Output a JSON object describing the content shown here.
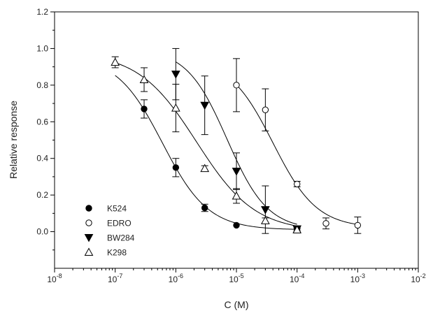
{
  "chart_data": {
    "type": "scatter",
    "title": "",
    "xlabel": "C (M)",
    "ylabel": "Relative response",
    "xscale": "log",
    "xlim": [
      1e-08,
      0.01
    ],
    "ylim": [
      -0.2,
      1.2
    ],
    "x_ticks": [
      {
        "value": 1e-08,
        "base": "10",
        "exp": "-8"
      },
      {
        "value": 1e-07,
        "base": "10",
        "exp": "-7"
      },
      {
        "value": 1e-06,
        "base": "10",
        "exp": "-6"
      },
      {
        "value": 1e-05,
        "base": "10",
        "exp": "-5"
      },
      {
        "value": 0.0001,
        "base": "10",
        "exp": "-4"
      },
      {
        "value": 0.001,
        "base": "10",
        "exp": "-3"
      },
      {
        "value": 0.01,
        "base": "10",
        "exp": "-2"
      }
    ],
    "y_ticks": [
      {
        "value": 0.0,
        "label": "0.0"
      },
      {
        "value": 0.2,
        "label": "0.2"
      },
      {
        "value": 0.4,
        "label": "0.4"
      },
      {
        "value": 0.6,
        "label": "0.6"
      },
      {
        "value": 0.8,
        "label": "0.8"
      },
      {
        "value": 1.0,
        "label": "1.0"
      },
      {
        "value": 1.2,
        "label": "1.2"
      }
    ],
    "grid": false,
    "legend_position": "bottom-left",
    "series": [
      {
        "name": "K524",
        "marker": "filled-circle",
        "x": [
          3e-07,
          1e-06,
          3e-06,
          1e-05,
          0.0001
        ],
        "y": [
          0.67,
          0.35,
          0.13,
          0.035,
          0.015
        ],
        "err": [
          0.05,
          0.05,
          0.02,
          0.0,
          0.0
        ],
        "fit": {
          "top": 0.96,
          "bottom": 0.01,
          "ic50": 6e-07,
          "hill": 1.15,
          "x_range": [
            1e-07,
            0.0001
          ]
        }
      },
      {
        "name": "EDRO",
        "marker": "open-circle",
        "x": [
          1e-05,
          3e-05,
          0.0001,
          0.0003,
          0.001
        ],
        "y": [
          0.8,
          0.665,
          0.26,
          0.045,
          0.035
        ],
        "err": [
          0.145,
          0.115,
          0.015,
          0.03,
          0.045
        ],
        "fit": {
          "top": 0.95,
          "bottom": 0.02,
          "ic50": 4e-05,
          "hill": 1.2,
          "x_range": [
            1e-05,
            0.001
          ]
        }
      },
      {
        "name": "BW284",
        "marker": "filled-triangle-down",
        "x": [
          1e-06,
          3e-06,
          1e-05,
          3e-05,
          0.0001
        ],
        "y": [
          0.86,
          0.69,
          0.33,
          0.12,
          0.015
        ],
        "err": [
          0.14,
          0.16,
          0.1,
          0.13,
          0.01
        ],
        "fit": {
          "top": 1.0,
          "bottom": 0.01,
          "ic50": 7e-06,
          "hill": 1.3,
          "x_range": [
            1e-06,
            0.0001
          ]
        }
      },
      {
        "name": "K298",
        "marker": "open-triangle-up",
        "x": [
          1e-07,
          3e-07,
          1e-06,
          3e-06,
          1e-05,
          3e-05,
          0.0001
        ],
        "y": [
          0.925,
          0.83,
          0.675,
          0.345,
          0.195,
          0.06,
          0.01
        ],
        "err": [
          0.03,
          0.065,
          0.13,
          0.015,
          0.04,
          0.015,
          0.01
        ],
        "fit": {
          "top": 0.98,
          "bottom": 0.0,
          "ic50": 2.2e-06,
          "hill": 0.9,
          "x_range": [
            1e-07,
            0.0001
          ]
        }
      }
    ]
  }
}
